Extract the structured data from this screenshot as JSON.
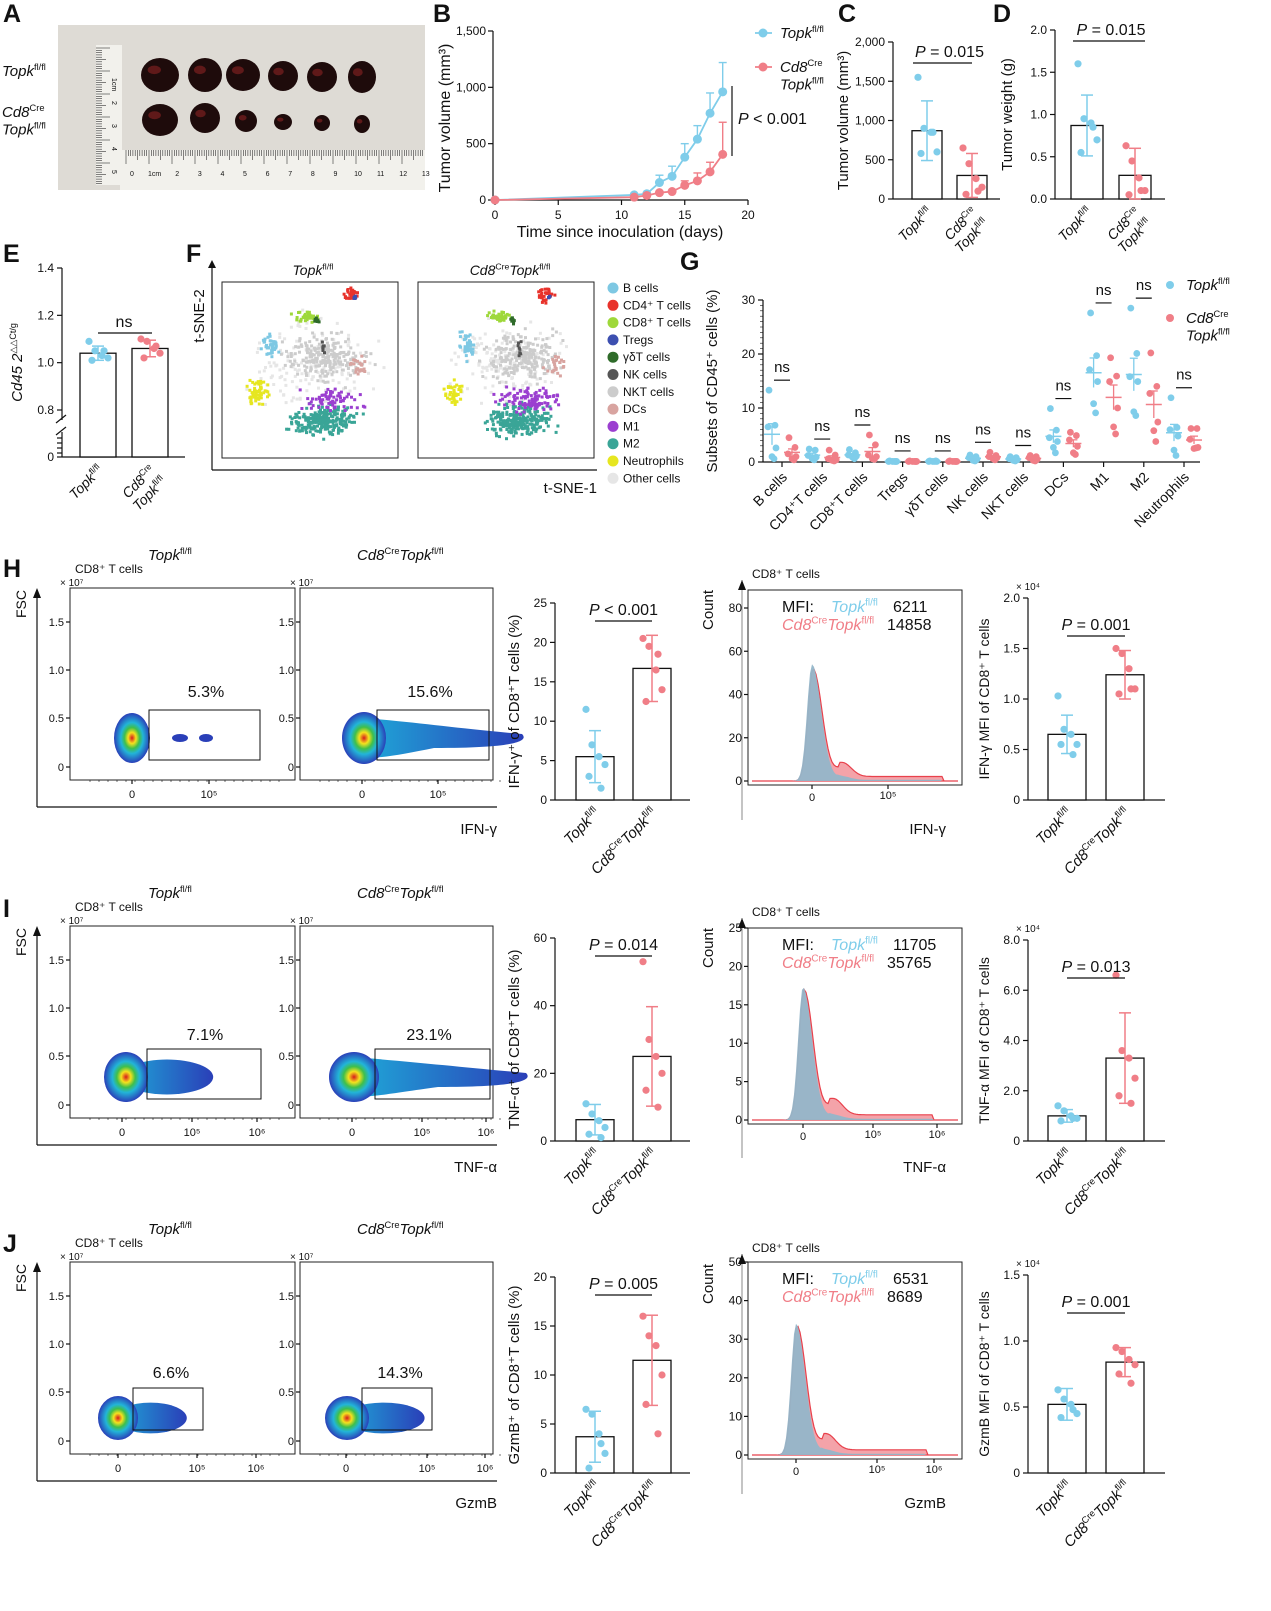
{
  "panel_labels": [
    "A",
    "B",
    "C",
    "D",
    "E",
    "F",
    "G",
    "H",
    "I",
    "J"
  ],
  "genotypes": {
    "wt": {
      "gene": "Topk",
      "sup": "fl/fl"
    },
    "ko": {
      "cre": "Cd8",
      "cre_sup": "Cre",
      "gene": "Topk",
      "sup": "fl/fl"
    }
  },
  "colors": {
    "wt": "#7fcdea",
    "ko": "#f07e87",
    "axis": "#111111"
  },
  "panel_a": {
    "ruler_labels": [
      "0",
      "1cm",
      "2",
      "3",
      "4",
      "5",
      "6",
      "7",
      "8",
      "9",
      "10",
      "11",
      "12",
      "13"
    ],
    "ruler_side_labels": [
      "1cm",
      "2",
      "3",
      "4",
      "5"
    ]
  },
  "panel_f": {
    "x_axis": "t-SNE-1",
    "y_axis": "t-SNE-2",
    "legend": [
      {
        "label": "B cells",
        "color": "#7ec8e3"
      },
      {
        "label": "CD4⁺ T cells",
        "color": "#e8322b"
      },
      {
        "label": "CD8⁺ T cells",
        "color": "#9ed83a"
      },
      {
        "label": "Tregs",
        "color": "#3c4fb0"
      },
      {
        "label": "γδT cells",
        "color": "#2f6b2a"
      },
      {
        "label": "NK cells",
        "color": "#555555"
      },
      {
        "label": "NKT cells",
        "color": "#cccccc"
      },
      {
        "label": "DCs",
        "color": "#d8a4a0"
      },
      {
        "label": "M1",
        "color": "#9b3fd0"
      },
      {
        "label": "M2",
        "color": "#3aa597"
      },
      {
        "label": "Neutrophils",
        "color": "#e6e620"
      },
      {
        "label": "Other cells",
        "color": "#e6e6e6"
      }
    ]
  },
  "chart_data": [
    {
      "id": "B",
      "type": "line",
      "xlabel": "Time since inoculation (days)",
      "ylabel": "Tumor volume (mm³)",
      "xlim": [
        0,
        20
      ],
      "ylim": [
        0,
        1500
      ],
      "xticks": [
        0,
        5,
        10,
        15,
        20
      ],
      "xtick_labels": [
        "0",
        "5",
        "10",
        "15",
        "20"
      ],
      "yticks": [
        0,
        500,
        1000,
        1500
      ],
      "ytick_labels": [
        "0",
        "500",
        "1,000",
        "1,500"
      ],
      "p_sym": "P",
      "p_val": " < 0.001",
      "legend": "top-right",
      "series": [
        {
          "group": "wt",
          "x": [
            0,
            11,
            12,
            13,
            14,
            15,
            16,
            17,
            18
          ],
          "y": [
            0,
            45,
            55,
            155,
            210,
            380,
            540,
            770,
            960
          ],
          "err": [
            0,
            0,
            0,
            65,
            90,
            120,
            120,
            180,
            260
          ]
        },
        {
          "group": "ko",
          "x": [
            0,
            11,
            12,
            13,
            14,
            15,
            16,
            17,
            18
          ],
          "y": [
            0,
            25,
            40,
            65,
            75,
            130,
            170,
            250,
            405
          ],
          "err": [
            0,
            0,
            0,
            0,
            0,
            40,
            70,
            85,
            285
          ]
        }
      ]
    },
    {
      "id": "C",
      "type": "bar",
      "ylabel": "Tumor volume (mm³)",
      "ylim": [
        0,
        2000
      ],
      "yticks": [
        0,
        500,
        1000,
        1500,
        2000
      ],
      "ytick_labels": [
        "0",
        "500",
        "1,000",
        "1,500",
        "2,000"
      ],
      "p_sym": "P",
      "p_val": " = 0.015",
      "groups": [
        {
          "group": "wt",
          "mean": 870,
          "sd": 380,
          "points": [
            1550,
            900,
            850,
            600,
            580,
            850
          ]
        },
        {
          "group": "ko",
          "mean": 300,
          "sd": 280,
          "points": [
            650,
            450,
            260,
            150,
            60,
            100
          ]
        }
      ]
    },
    {
      "id": "D",
      "type": "bar",
      "ylabel": "Tumor weight (g)",
      "ylim": [
        0,
        2
      ],
      "yticks": [
        0,
        0.5,
        1,
        1.5,
        2
      ],
      "ytick_labels": [
        "0.0",
        "0.5",
        "1.0",
        "1.5",
        "2.0"
      ],
      "p_sym": "P",
      "p_val": " = 0.015",
      "groups": [
        {
          "group": "wt",
          "mean": 0.87,
          "sd": 0.36,
          "points": [
            1.6,
            0.95,
            0.9,
            0.7,
            0.55,
            0.85
          ]
        },
        {
          "group": "ko",
          "mean": 0.28,
          "sd": 0.32,
          "points": [
            0.63,
            0.45,
            0.25,
            0.1,
            0.05,
            0.1
          ]
        }
      ]
    },
    {
      "id": "E",
      "type": "bar",
      "ylabel": "Cd45 2",
      "ylabel_sup": "△△Ct/g",
      "ylim": [
        0,
        1.4
      ],
      "axis_break": [
        0,
        0.8
      ],
      "yticks": [
        0,
        0.8,
        1.0,
        1.2,
        1.4
      ],
      "ytick_labels": [
        "0",
        "0.8",
        "1.0",
        "1.2",
        "1.4"
      ],
      "p_text": "ns",
      "groups": [
        {
          "group": "wt",
          "mean": 1.04,
          "sd": 0.03,
          "points": [
            1.09,
            1.05,
            1.03,
            1.02,
            1.01,
            1.05
          ]
        },
        {
          "group": "ko",
          "mean": 1.06,
          "sd": 0.035,
          "points": [
            1.1,
            1.09,
            1.06,
            1.04,
            1.02,
            1.07
          ]
        }
      ]
    },
    {
      "id": "G",
      "type": "scatter",
      "ylabel": "Subsets of CD45⁺ cells (%)",
      "ylim": [
        0,
        30
      ],
      "yticks": [
        0,
        10,
        20,
        30
      ],
      "ytick_labels": [
        "0",
        "10",
        "20",
        "30"
      ],
      "legend": "top-right",
      "categories": [
        "B cells",
        "CD4⁺T cells",
        "CD8⁺T cells",
        "Tregs",
        "γδT cells",
        "NK cells",
        "NKT cells",
        "DCs",
        "M1",
        "M2",
        "Neutrophils"
      ],
      "significance": [
        "ns",
        "ns",
        "ns",
        "ns",
        "ns",
        "ns",
        "ns",
        "ns",
        "ns",
        "ns",
        "ns"
      ],
      "series": [
        {
          "group": "wt",
          "points": [
            [
              13.3,
              6.8,
              6.5,
              2.6,
              1,
              0.6
            ],
            [
              2.4,
              2.2,
              1.2,
              0.9,
              0.6,
              0.4
            ],
            [
              2.3,
              1.7,
              1.3,
              1.1,
              0.9,
              0.6
            ],
            [
              0.2,
              0.1,
              0.1,
              0.1,
              0.1,
              0.1
            ],
            [
              0.2,
              0.2,
              0.1,
              0.1,
              0.1,
              0.1
            ],
            [
              1.3,
              1,
              0.8,
              0.5,
              0.3,
              0.2
            ],
            [
              1,
              0.8,
              0.6,
              0.4,
              0.3,
              0.2
            ],
            [
              9.9,
              5.9,
              4.5,
              3.8,
              2.7,
              1.7
            ],
            [
              27.6,
              19.7,
              17.1,
              14.9,
              10.8,
              9.1
            ],
            [
              28.5,
              20.1,
              15.8,
              14.9,
              9.3,
              8.6
            ],
            [
              11.9,
              6.4,
              6,
              4.8,
              2.2,
              1.2
            ]
          ]
        },
        {
          "group": "ko",
          "points": [
            [
              4.5,
              2.7,
              1.5,
              1,
              0.6,
              0.4
            ],
            [
              2.2,
              1.3,
              0.6,
              0.4,
              0.3,
              0.2
            ],
            [
              5,
              3.2,
              1.3,
              1,
              0.6,
              0.5
            ],
            [
              0.2,
              0.1,
              0.1,
              0.1,
              0.1,
              0.1
            ],
            [
              0.2,
              0.1,
              0.1,
              0.1,
              0.1,
              0.1
            ],
            [
              1.8,
              1.2,
              1,
              0.8,
              0.6,
              0.4
            ],
            [
              1.2,
              1,
              0.8,
              0.5,
              0.3,
              0.2
            ],
            [
              5.5,
              4.9,
              4.1,
              2.9,
              1.7,
              1.4
            ],
            [
              19.3,
              15.9,
              14.9,
              10,
              6.5,
              5.2
            ],
            [
              20.2,
              14,
              12.7,
              7.4,
              5.8,
              3.8
            ],
            [
              6.2,
              6.2,
              4.2,
              2.7,
              2.5,
              2.6
            ]
          ]
        }
      ]
    },
    {
      "id": "H",
      "row": 0,
      "flow": {
        "subset": "CD8⁺ T cells",
        "yaxis": "FSC",
        "xaxis": "IFN-γ",
        "y_exp": "× 10⁷",
        "ytick_labels": [
          "0",
          "0.5",
          "1.0",
          "1.5"
        ],
        "xtick_labels": [
          "0",
          "10⁵"
        ],
        "gates": [
          "5.3%",
          "15.6%"
        ]
      },
      "bar": {
        "type": "bar",
        "ylabel": "IFN-γ⁺ of CD8⁺T cells (%)",
        "ylim": [
          0,
          25
        ],
        "yticks": [
          0,
          5,
          10,
          15,
          20,
          25
        ],
        "ytick_labels": [
          "0",
          "5",
          "10",
          "15",
          "20",
          "25"
        ],
        "p_sym": "P",
        "p_val": " < 0.001",
        "groups": [
          {
            "group": "wt",
            "mean": 5.5,
            "sd": 3.3,
            "points": [
              11.5,
              7,
              5.5,
              4.5,
              3,
              1.5
            ]
          },
          {
            "group": "ko",
            "mean": 16.7,
            "sd": 4.2,
            "points": [
              20.5,
              19.5,
              16.5,
              14,
              12.5,
              18.5
            ]
          }
        ]
      },
      "hist": {
        "type": "area",
        "title": "CD8⁺ T cells",
        "ylabel": "Count",
        "xlabel": "IFN-γ",
        "ylim": [
          0,
          85
        ],
        "yticks": [
          0,
          20,
          40,
          60,
          80
        ],
        "ytick_labels": [
          "0",
          "20",
          "40",
          "60",
          "80"
        ],
        "xtick_labels": [
          "0",
          "10⁵"
        ],
        "mfi_label": "MFI:",
        "mfi": [
          "6211",
          "14858"
        ],
        "peaks": [
          54,
          52
        ]
      },
      "mfi": {
        "type": "bar",
        "ylabel": "IFN-γ MFI of CD8⁺ T cells",
        "exp": "× 10⁴",
        "ylim": [
          0,
          2
        ],
        "yticks": [
          0,
          0.5,
          1,
          1.5,
          2
        ],
        "ytick_labels": [
          "0",
          "0.5",
          "1.0",
          "1.5",
          "2.0"
        ],
        "p_sym": "P",
        "p_val": " = 0.001",
        "groups": [
          {
            "group": "wt",
            "mean": 0.65,
            "sd": 0.19,
            "points": [
              1.03,
              0.7,
              0.65,
              0.55,
              0.55,
              0.45
            ]
          },
          {
            "group": "ko",
            "mean": 1.24,
            "sd": 0.24,
            "points": [
              1.5,
              1.45,
              1.3,
              1.1,
              1.05,
              1.1
            ]
          }
        ]
      }
    },
    {
      "id": "I",
      "row": 1,
      "flow": {
        "subset": "CD8⁺ T cells",
        "yaxis": "FSC",
        "xaxis": "TNF-α",
        "y_exp": "× 10⁷",
        "ytick_labels": [
          "0",
          "0.5",
          "1.0",
          "1.5"
        ],
        "xtick_labels": [
          "0",
          "10⁵",
          "10⁶"
        ],
        "gates": [
          "7.1%",
          "23.1%"
        ]
      },
      "bar": {
        "type": "bar",
        "ylabel": "TNF-α⁺ of CD8⁺T cells (%)",
        "ylim": [
          0,
          60
        ],
        "yticks": [
          0,
          20,
          40,
          60
        ],
        "ytick_labels": [
          "0",
          "20",
          "40",
          "60"
        ],
        "p_sym": "P",
        "p_val": " = 0.014",
        "groups": [
          {
            "group": "wt",
            "mean": 6.3,
            "sd": 4.5,
            "points": [
              11,
              8,
              6,
              4,
              2,
              1
            ]
          },
          {
            "group": "ko",
            "mean": 25,
            "sd": 14.7,
            "points": [
              53,
              30,
              25,
              20,
              15,
              10
            ]
          }
        ]
      },
      "hist": {
        "type": "area",
        "title": "CD8⁺ T cells",
        "ylabel": "Count",
        "xlabel": "TNF-α",
        "ylim": [
          0,
          25
        ],
        "yticks": [
          0,
          5,
          10,
          15,
          20,
          25
        ],
        "ytick_labels": [
          "0",
          "5",
          "10",
          "15",
          "20",
          "25"
        ],
        "xtick_labels": [
          "0",
          "10⁵",
          "10⁶"
        ],
        "mfi_label": "MFI:",
        "mfi": [
          "11705",
          "35765"
        ],
        "peaks": [
          17.3,
          17
        ]
      },
      "mfi": {
        "type": "bar",
        "ylabel": "TNF-α MFI of CD8⁺ T cells",
        "exp": "× 10⁴",
        "ylim": [
          0,
          8
        ],
        "yticks": [
          0,
          2,
          4,
          6,
          8
        ],
        "ytick_labels": [
          "0",
          "2.0",
          "4.0",
          "6.0",
          "8.0"
        ],
        "p_sym": "P",
        "p_val": " = 0.013",
        "groups": [
          {
            "group": "wt",
            "mean": 1.0,
            "sd": 0.25,
            "points": [
              1.4,
              1.2,
              1.0,
              0.9,
              0.8,
              0.9
            ]
          },
          {
            "group": "ko",
            "mean": 3.3,
            "sd": 1.8,
            "points": [
              6.6,
              3.6,
              3.3,
              2.5,
              1.8,
              1.5
            ]
          }
        ]
      }
    },
    {
      "id": "J",
      "row": 2,
      "flow": {
        "subset": "CD8⁺ T cells",
        "yaxis": "FSC",
        "xaxis": "GzmB",
        "y_exp": "× 10⁷",
        "ytick_labels": [
          "0",
          "0.5",
          "1.0",
          "1.5"
        ],
        "xtick_labels": [
          "0",
          "10⁵",
          "10⁶"
        ],
        "gates": [
          "6.6%",
          "14.3%"
        ]
      },
      "bar": {
        "type": "bar",
        "ylabel": "GzmB⁺ of CD8⁺T cells (%)",
        "ylim": [
          0,
          20
        ],
        "yticks": [
          0,
          5,
          10,
          15,
          20
        ],
        "ytick_labels": [
          "0",
          "5",
          "10",
          "15",
          "20"
        ],
        "p_sym": "P",
        "p_val": " = 0.005",
        "groups": [
          {
            "group": "wt",
            "mean": 3.7,
            "sd": 2.6,
            "points": [
              6.5,
              6,
              4,
              2,
              0.5,
              3
            ]
          },
          {
            "group": "ko",
            "mean": 11.5,
            "sd": 4.6,
            "points": [
              16,
              14,
              13,
              10,
              7,
              4
            ]
          }
        ]
      },
      "hist": {
        "type": "area",
        "title": "CD8⁺ T cells",
        "ylabel": "Count",
        "xlabel": "GzmB",
        "ylim": [
          0,
          50
        ],
        "yticks": [
          0,
          10,
          20,
          30,
          40,
          50
        ],
        "ytick_labels": [
          "0",
          "10",
          "20",
          "30",
          "40",
          "50"
        ],
        "xtick_labels": [
          "0",
          "10⁵",
          "10⁶"
        ],
        "mfi_label": "MFI:",
        "mfi": [
          "6531",
          "8689"
        ],
        "peaks": [
          34,
          33.5
        ]
      },
      "mfi": {
        "type": "bar",
        "ylabel": "GzmB MFI of CD8⁺ T cells",
        "exp": "× 10⁴",
        "ylim": [
          0,
          1.5
        ],
        "yticks": [
          0,
          0.5,
          1,
          1.5
        ],
        "ytick_labels": [
          "0",
          "0.5",
          "1.0",
          "1.5"
        ],
        "p_sym": "P",
        "p_val": " = 0.001",
        "groups": [
          {
            "group": "wt",
            "mean": 0.52,
            "sd": 0.12,
            "points": [
              0.63,
              0.56,
              0.52,
              0.45,
              0.42,
              0.48
            ]
          },
          {
            "group": "ko",
            "mean": 0.84,
            "sd": 0.11,
            "points": [
              0.95,
              0.92,
              0.86,
              0.82,
              0.75,
              0.68
            ]
          }
        ]
      }
    }
  ]
}
